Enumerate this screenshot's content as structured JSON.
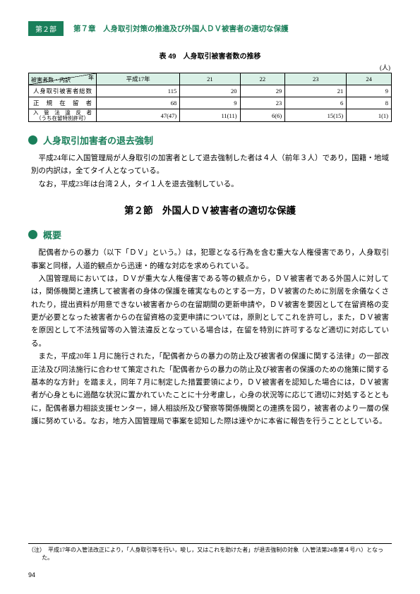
{
  "header": {
    "part_label": "第２部",
    "chapter_title": "第７章　人身取引対策の推進及び外国人ＤＶ被害者の適切な保護"
  },
  "table": {
    "caption": "表 49　人身取引被害者数の推移",
    "unit": "(人)",
    "corner_top": "年",
    "corner_bottom": "被害者数・内訳",
    "columns": [
      "平成17年",
      "21",
      "22",
      "23",
      "24"
    ],
    "rows": [
      {
        "label": "人身取引被害者総数",
        "values": [
          "115",
          "20",
          "29",
          "21",
          "9"
        ]
      },
      {
        "label": "正　規　在　留　者",
        "values": [
          "68",
          "9",
          "23",
          "6",
          "8"
        ]
      },
      {
        "label": "入　管　法　違　反　者",
        "sublabel": "（うち在留特別許可）",
        "values": [
          "47(47)",
          "11(11)",
          "6(6)",
          "15(15)",
          "1(1)"
        ]
      }
    ]
  },
  "section1": {
    "title": "人身取引加害者の退去強制",
    "paragraphs": [
      "平成24年に入国管理局が人身取引の加害者として退去強制した者は４人（前年３人）であり，国籍・地域別の内訳は，全てタイ人となっている。",
      "なお，平成23年は台湾２人，タイ１人を退去強制している。"
    ]
  },
  "node_title": "第２節　外国人ＤＶ被害者の適切な保護",
  "section2": {
    "title": "概要",
    "paragraphs": [
      "配偶者からの暴力（以下「ＤＶ」という。）は，犯罪となる行為を含む重大な人権侵害であり，人身取引事案と同様，人道的観点から迅速・的確な対応を求められている。",
      "入国管理局においては，ＤＶが重大な人権侵害である等の観点から，ＤＶ被害者である外国人に対しては，関係機関と連携して被害者の身体の保護を確実なものとする一方，ＤＶ被害のために別居を余儀なくされたり，提出資料が用意できない被害者からの在留期間の更新申請や，ＤＶ被害を要因として在留資格の変更が必要となった被害者からの在留資格の変更申請については，原則としてこれを許可し，また，ＤＶ被害を原因として不法残留等の入管法違反となっている場合は，在留を特別に許可するなど適切に対応している。",
      "また，平成20年１月に施行された，「配偶者からの暴力の防止及び被害者の保護に関する法律」の一部改正法及び同法施行に合わせて策定された「配偶者からの暴力の防止及び被害者の保護のための施策に関する基本的な方針」を踏まえ，同年７月に制定した措置要領により，ＤＶ被害者を認知した場合には，ＤＶ被害者が心身ともに過酷な状況に置かれていたことに十分考慮し，心身の状況等に応じて適切に対処するとともに，配偶者暴力相談支援センター，婦人相談所及び警察等関係機関との連携を図り，被害者のより一層の保護に努めている。なお，地方入国管理局で事案を認知した際は速やかに本省に報告を行うこととしている。"
    ]
  },
  "footnote": "（注）　平成17年の入管法改正により，「人身取引等を行い，唆し，又はこれを助けた者」が退去強制の対象（入管法第24条第４号ハ）となった。",
  "page_number": "94"
}
